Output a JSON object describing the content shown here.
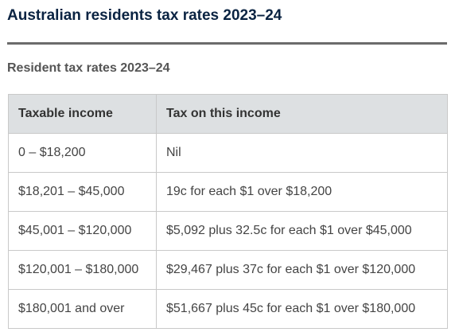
{
  "page": {
    "title": "Australian residents tax rates 2023–24"
  },
  "table": {
    "caption": "Resident tax rates 2023–24",
    "headers": [
      "Taxable income",
      "Tax on this income"
    ],
    "rows": [
      [
        "0 – $18,200",
        "Nil"
      ],
      [
        "$18,201 – $45,000",
        "19c for each $1 over $18,200"
      ],
      [
        "$45,001 – $120,000",
        "$5,092 plus 32.5c for each $1 over $45,000"
      ],
      [
        "$120,001 – $180,000",
        "$29,467 plus 37c for each $1 over $120,000"
      ],
      [
        "$180,001 and over",
        "$51,667 plus 45c for each $1 over $180,000"
      ]
    ]
  },
  "colors": {
    "title": "#0a2342",
    "header_bg": "#dde0e2",
    "border": "#c9c9c9",
    "rule": "#6b6b6b"
  }
}
